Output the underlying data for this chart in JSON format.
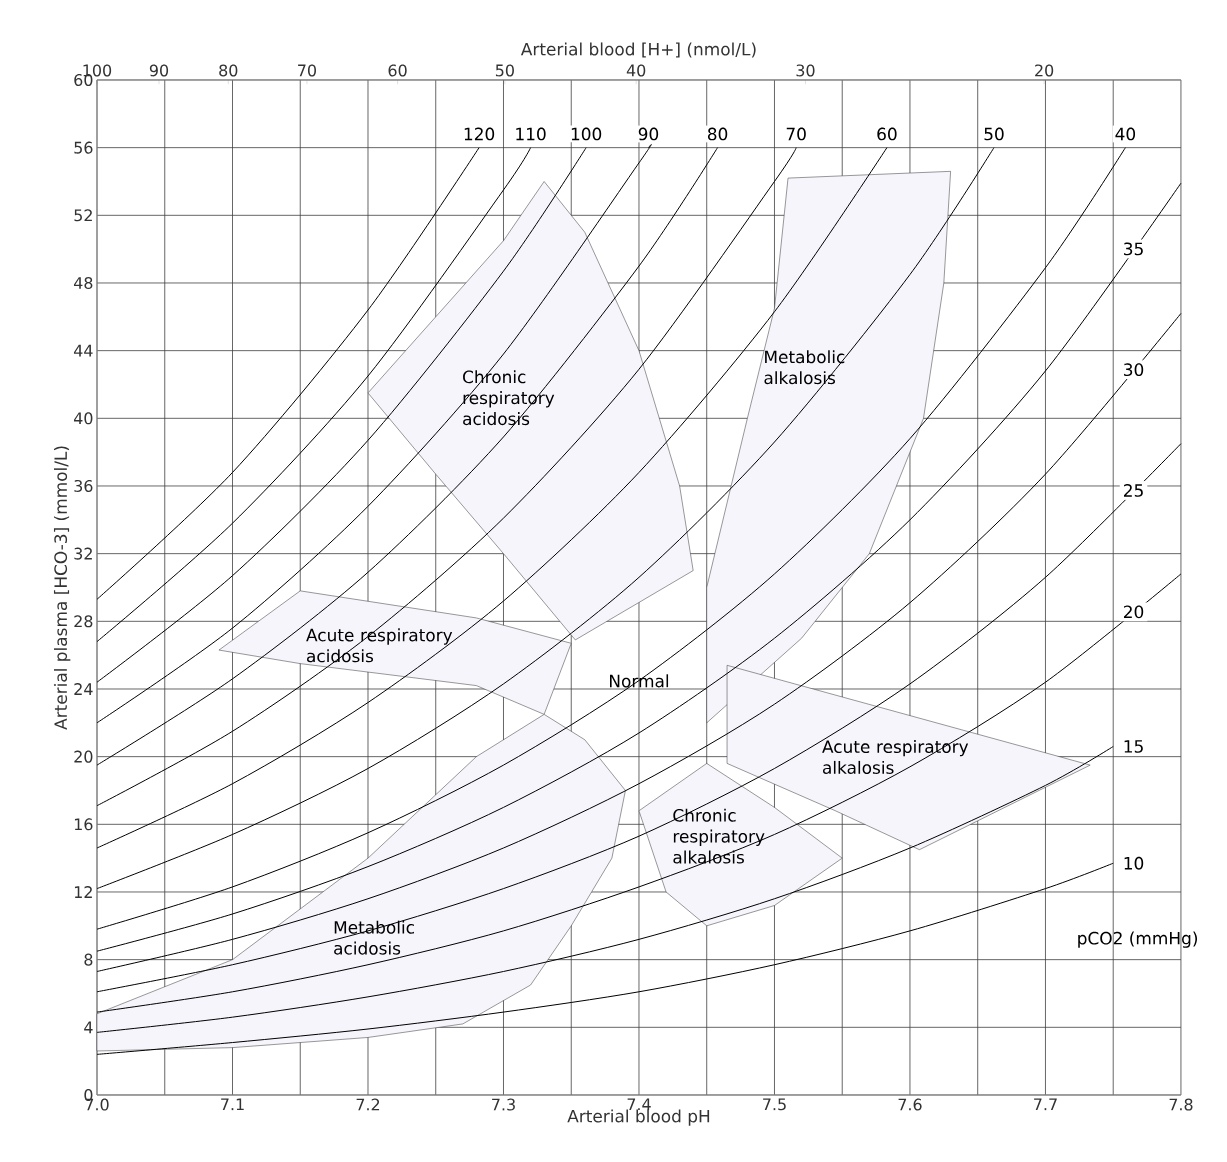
{
  "chart_data": {
    "type": "line",
    "xlabel": "Arterial blood pH",
    "ylabel": "Arterial plasma [HCO-3] (mmol/L)",
    "x2label": "Arterial blood [H+] (nmol/L)",
    "xlim": [
      7.0,
      7.8
    ],
    "ylim": [
      0,
      60
    ],
    "x2lim": [
      100,
      15.85
    ],
    "log": "x2",
    "grid": true,
    "xticks": [
      {
        "value": 7.0,
        "label": "7.0"
      },
      {
        "value": 7.05,
        "label": null
      },
      {
        "value": 7.1,
        "label": "7.1"
      },
      {
        "value": 7.15,
        "label": null
      },
      {
        "value": 7.2,
        "label": "7.2"
      },
      {
        "value": 7.25,
        "label": null
      },
      {
        "value": 7.3,
        "label": "7.3"
      },
      {
        "value": 7.35,
        "label": null
      },
      {
        "value": 7.4,
        "label": "7.4"
      },
      {
        "value": 7.45,
        "label": null
      },
      {
        "value": 7.5,
        "label": "7.5"
      },
      {
        "value": 7.55,
        "label": null
      },
      {
        "value": 7.6,
        "label": "7.6"
      },
      {
        "value": 7.65,
        "label": null
      },
      {
        "value": 7.7,
        "label": "7.7"
      },
      {
        "value": 7.75,
        "label": null
      },
      {
        "value": 7.8,
        "label": "7.8"
      }
    ],
    "yticks": [
      0,
      4,
      8,
      12,
      16,
      20,
      24,
      28,
      32,
      36,
      40,
      44,
      48,
      52,
      56,
      60
    ],
    "x2ticks": [
      100,
      90,
      80,
      70,
      60,
      50,
      40,
      30,
      20
    ],
    "series": [
      {
        "type": "area",
        "color": "#f5f5fb",
        "x": [
          7.2,
          7.25,
          7.3,
          7.33,
          7.36,
          7.4,
          7.43,
          7.44,
          7.353,
          7.3,
          7.25
        ],
        "values": [
          41.5,
          46,
          50.5,
          54,
          51,
          44,
          36,
          31,
          26.9,
          32.0,
          36.7
        ]
      },
      {
        "type": "area",
        "color": "#f5f5fb",
        "x": [
          7.51,
          7.63,
          7.625,
          7.61,
          7.57,
          7.52,
          7.45,
          7.45,
          7.48,
          7.5
        ],
        "values": [
          54.2,
          54.6,
          48,
          40,
          32,
          27,
          22,
          30,
          40,
          46.5
        ]
      },
      {
        "type": "area",
        "color": "#f5f5fb",
        "x": [
          7.09,
          7.15,
          7.28,
          7.35,
          7.33,
          7.28,
          7.15
        ],
        "values": [
          26.3,
          29.8,
          28.2,
          26.7,
          22.5,
          24.2,
          25.5
        ]
      },
      {
        "type": "area",
        "color": "#f5f5fb",
        "x": [
          7.465,
          7.733,
          7.607,
          7.545,
          7.465
        ],
        "values": [
          25.4,
          19.5,
          14.5,
          16.8,
          19.6
        ]
      },
      {
        "type": "area",
        "color": "#f5f5fb",
        "x": [
          7.4,
          7.45,
          7.5,
          7.55,
          7.5,
          7.45,
          7.42
        ],
        "values": [
          16.8,
          19.6,
          17,
          14,
          11.2,
          10,
          12
        ]
      },
      {
        "type": "area",
        "color": "#f5f5fb",
        "x": [
          7.0,
          7.1,
          7.2,
          7.27,
          7.32,
          7.35,
          7.38,
          7.39,
          7.36,
          7.33,
          7.28,
          7.2,
          7.1,
          7.0
        ],
        "values": [
          2.6,
          2.8,
          3.4,
          4.2,
          6.5,
          10,
          14,
          18,
          21,
          22.5,
          20,
          14,
          8,
          4.8
        ]
      },
      {
        "name": "120",
        "color": "#000000",
        "x": [
          7.0,
          7.1,
          7.2,
          7.282
        ],
        "values": [
          29.3,
          36.8,
          46.4,
          56.0
        ]
      },
      {
        "name": "110",
        "color": "#000000",
        "x": [
          7.0,
          7.1,
          7.2,
          7.3,
          7.32
        ],
        "values": [
          26.8,
          33.8,
          42.5,
          53.5,
          56.0
        ]
      },
      {
        "name": "100",
        "color": "#000000",
        "x": [
          7.0,
          7.1,
          7.2,
          7.3,
          7.361
        ],
        "values": [
          24.4,
          30.7,
          38.7,
          48.7,
          56.0
        ]
      },
      {
        "name": "90",
        "color": "#000000",
        "x": [
          7.0,
          7.1,
          7.2,
          7.3,
          7.4,
          7.407
        ],
        "values": [
          22.0,
          27.6,
          34.8,
          43.8,
          55.1,
          56.0
        ]
      },
      {
        "name": "80",
        "color": "#000000",
        "x": [
          7.0,
          7.1,
          7.2,
          7.3,
          7.4,
          7.458
        ],
        "values": [
          19.5,
          24.6,
          30.9,
          38.9,
          49.0,
          56.0
        ]
      },
      {
        "name": "70",
        "color": "#000000",
        "x": [
          7.0,
          7.1,
          7.2,
          7.3,
          7.4,
          7.5,
          7.516
        ],
        "values": [
          17.1,
          21.5,
          27.1,
          34.1,
          42.9,
          54.0,
          56.0
        ]
      },
      {
        "name": "60",
        "color": "#000000",
        "x": [
          7.0,
          7.1,
          7.2,
          7.3,
          7.4,
          7.5,
          7.583
        ],
        "values": [
          14.6,
          18.4,
          23.2,
          29.2,
          36.8,
          46.3,
          56.0
        ]
      },
      {
        "name": "50",
        "color": "#000000",
        "x": [
          7.0,
          7.1,
          7.2,
          7.3,
          7.4,
          7.5,
          7.6,
          7.662
        ],
        "values": [
          12.2,
          15.4,
          19.3,
          24.3,
          30.6,
          38.6,
          48.5,
          56.0
        ]
      },
      {
        "name": "40",
        "color": "#000000",
        "x": [
          7.0,
          7.1,
          7.2,
          7.3,
          7.4,
          7.5,
          7.6,
          7.7,
          7.759
        ],
        "values": [
          9.8,
          12.3,
          15.5,
          19.5,
          24.5,
          30.8,
          38.8,
          48.9,
          56.0
        ]
      },
      {
        "name": "35",
        "color": "#000000",
        "x": [
          7.0,
          7.1,
          7.2,
          7.3,
          7.4,
          7.5,
          7.6,
          7.7,
          7.8
        ],
        "values": [
          8.5,
          10.7,
          13.5,
          17.0,
          21.4,
          27.0,
          34.0,
          42.8,
          53.9
        ]
      },
      {
        "name": "30",
        "color": "#000000",
        "x": [
          7.0,
          7.1,
          7.2,
          7.3,
          7.4,
          7.5,
          7.6,
          7.7,
          7.8
        ],
        "values": [
          7.3,
          9.2,
          11.6,
          14.6,
          18.4,
          23.1,
          29.1,
          36.7,
          46.2
        ]
      },
      {
        "name": "25",
        "color": "#000000",
        "x": [
          7.0,
          7.1,
          7.2,
          7.3,
          7.4,
          7.5,
          7.6,
          7.7,
          7.8
        ],
        "values": [
          6.1,
          7.7,
          9.7,
          12.2,
          15.3,
          19.3,
          24.3,
          30.6,
          38.5
        ]
      },
      {
        "name": "20",
        "color": "#000000",
        "x": [
          7.0,
          7.1,
          7.2,
          7.3,
          7.4,
          7.5,
          7.6,
          7.7,
          7.8
        ],
        "values": [
          4.9,
          6.1,
          7.7,
          9.7,
          12.3,
          15.4,
          19.4,
          24.4,
          30.8
        ]
      },
      {
        "name": "15",
        "color": "#000000",
        "x": [
          7.0,
          7.1,
          7.2,
          7.3,
          7.4,
          7.5,
          7.6,
          7.7,
          7.75
        ],
        "values": [
          3.7,
          4.6,
          5.8,
          7.3,
          9.2,
          11.6,
          14.6,
          18.3,
          20.6
        ]
      },
      {
        "name": "10",
        "color": "#000000",
        "x": [
          7.0,
          7.1,
          7.2,
          7.3,
          7.4,
          7.5,
          7.6,
          7.7,
          7.75
        ],
        "values": [
          2.4,
          3.1,
          3.9,
          4.9,
          6.1,
          7.7,
          9.7,
          12.2,
          13.7
        ]
      }
    ],
    "annotations": [
      "Chronic respiratory acidosis",
      "Metabolic alkalosis",
      "Acute respiratory acidosis",
      "Normal",
      "Acute respiratory alkalosis",
      "Chronic respiratory alkalosis",
      "Metabolic acidosis",
      "pCO2 (mmHg)"
    ]
  }
}
